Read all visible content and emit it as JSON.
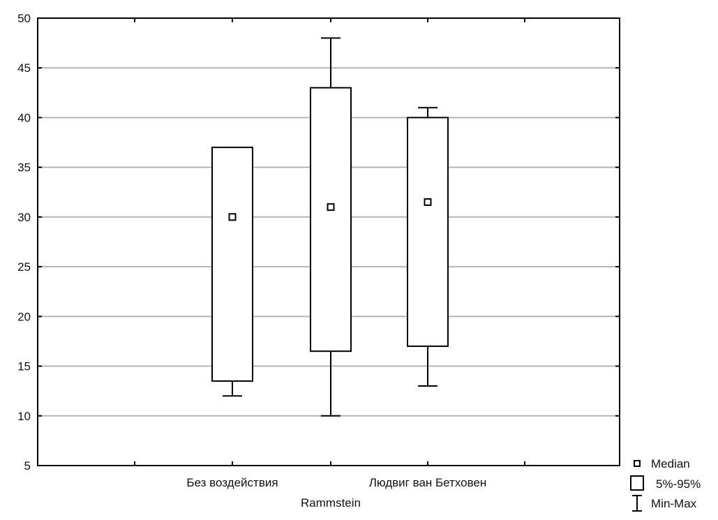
{
  "chart_data": {
    "type": "box",
    "categories": [
      "Без воздействия",
      "Rammstein",
      "Людвиг ван Бетховен"
    ],
    "boxes": [
      {
        "category": "Без воздействия",
        "min": 12,
        "q05": 13.5,
        "median": 30,
        "q95": 37,
        "max": 37
      },
      {
        "category": "Rammstein",
        "min": 10,
        "q05": 16.5,
        "median": 31,
        "q95": 43,
        "max": 48
      },
      {
        "category": "Людвиг ван Бетховен",
        "min": 13,
        "q05": 17,
        "median": 31.5,
        "q95": 40,
        "max": 41
      }
    ],
    "ylim": [
      5,
      50
    ],
    "yticks": [
      5,
      10,
      15,
      20,
      25,
      30,
      35,
      40,
      45,
      50
    ],
    "grid": true,
    "legend": {
      "placement": "bottom-right",
      "items": [
        {
          "kind": "median",
          "label": "Median"
        },
        {
          "kind": "box",
          "label": "5%-95%"
        },
        {
          "kind": "whisker",
          "label": "Min-Max"
        }
      ]
    }
  }
}
